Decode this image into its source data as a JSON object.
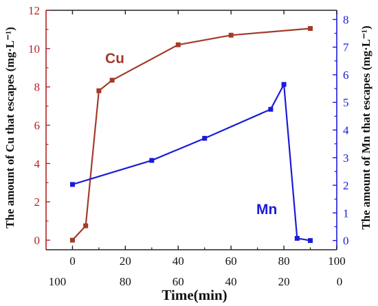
{
  "chart_data": {
    "type": "line",
    "x_bottom_label": "Time(min)",
    "x_top_ticks": [
      "0",
      "20",
      "40",
      "60",
      "80",
      "100"
    ],
    "x_bottom_ticks": [
      "100",
      "80",
      "60",
      "40",
      "20",
      "0"
    ],
    "xlim": [
      -10,
      100
    ],
    "y_left": {
      "label": "The amount of Cu that escapes (mg·L⁻¹)",
      "ylim": [
        -0.5,
        12
      ],
      "ticks": [
        "0",
        "2",
        "4",
        "6",
        "8",
        "10",
        "12"
      ],
      "color": "#b22222"
    },
    "y_right": {
      "label": "The amount of Mn that escapes (mg·L⁻¹)",
      "ylim": [
        -0.333,
        8.333
      ],
      "ticks": [
        "0",
        "1",
        "2",
        "3",
        "4",
        "5",
        "6",
        "7",
        "8"
      ],
      "color": "#1a1adb"
    },
    "series": [
      {
        "name": "Cu",
        "axis": "left",
        "color": "#a33a2a",
        "x": [
          0,
          5,
          10,
          15,
          40,
          60,
          90
        ],
        "values": [
          0.0,
          0.75,
          7.8,
          8.35,
          10.2,
          10.7,
          11.05
        ]
      },
      {
        "name": "Mn",
        "axis": "right",
        "color": "#1a1adb",
        "x": [
          0,
          30,
          50,
          75,
          80,
          85,
          90
        ],
        "values": [
          2.03,
          2.9,
          3.7,
          4.75,
          5.65,
          0.08,
          0.0
        ]
      }
    ]
  }
}
